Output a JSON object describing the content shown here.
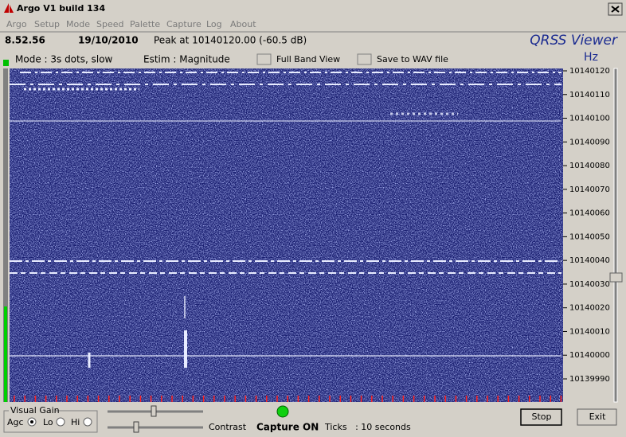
{
  "window": {
    "title": "Argo V1 build 134"
  },
  "menu": [
    "Argo",
    "Setup",
    "Mode",
    "Speed",
    "Palette",
    "Capture",
    "Log",
    "About"
  ],
  "status": {
    "time": "8.52.56",
    "date": "19/10/2010",
    "peak": "Peak at 10140120.00 (-60.5 dB)",
    "brand": "QRSS Viewer",
    "unit": "Hz"
  },
  "toolbar": {
    "mode": "Mode : 3s dots, slow",
    "estim": "Estim : Magnitude",
    "full_band": "Full Band View",
    "save_wav": "Save to WAV file"
  },
  "frequency_axis": {
    "labels": [
      "10140120",
      "10140110",
      "10140100",
      "10140090",
      "10140080",
      "10140070",
      "10140060",
      "10140050",
      "10140040",
      "10140030",
      "10140020",
      "10140010",
      "10140000",
      "10139990"
    ]
  },
  "controls": {
    "visual_gain": "Visual Gain",
    "agc": "Agc",
    "lo": "Lo",
    "hi": "Hi",
    "contrast": "Contrast",
    "capture": "Capture ON",
    "ticks": "Ticks   : 10 seconds",
    "stop": "Stop",
    "exit": "Exit"
  }
}
